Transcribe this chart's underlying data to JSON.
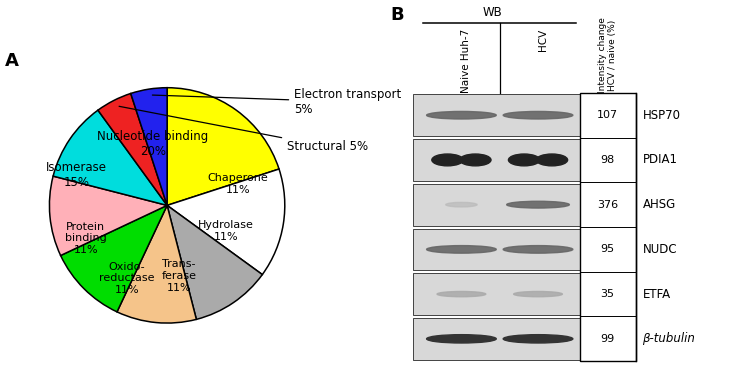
{
  "pie": {
    "wedge_sizes": [
      20,
      15,
      11,
      11,
      11,
      11,
      11,
      5,
      5
    ],
    "wedge_colors": [
      "#FFFF00",
      "#FFFFFF",
      "#AAAAAA",
      "#F5C48A",
      "#00DD00",
      "#FFB0B8",
      "#00DDDD",
      "#EE2222",
      "#2222EE"
    ],
    "wedge_order": [
      "Nucleotide binding\n20%",
      "Isomerase\n15%",
      "Protein\nbinding\n11%",
      "Oxido-\nreductase\n11%",
      "Trans-\nferase\n11%",
      "Hydrolase\n11%",
      "Chaperone\n11%",
      "Structural 5%",
      "Electron transport\n5%"
    ],
    "startangle": 90,
    "counterclock": false
  },
  "wb": {
    "rows": [
      {
        "value": "107",
        "label": "HSP70",
        "naive_style": "medium",
        "hcv_style": "medium"
      },
      {
        "value": "98",
        "label": "PDIA1",
        "naive_style": "dark_clump",
        "hcv_style": "dark_clump"
      },
      {
        "value": "376",
        "label": "AHSG",
        "naive_style": "faint_thin",
        "hcv_style": "medium_wide"
      },
      {
        "value": "95",
        "label": "NUDC",
        "naive_style": "medium",
        "hcv_style": "medium"
      },
      {
        "value": "35",
        "label": "ETFA",
        "naive_style": "faint",
        "hcv_style": "faint"
      },
      {
        "value": "99",
        "label": "β-tubulin",
        "naive_style": "dark",
        "hcv_style": "dark"
      }
    ]
  },
  "panel_a_label": "A",
  "panel_b_label": "B",
  "fig_width": 7.33,
  "fig_height": 3.79
}
